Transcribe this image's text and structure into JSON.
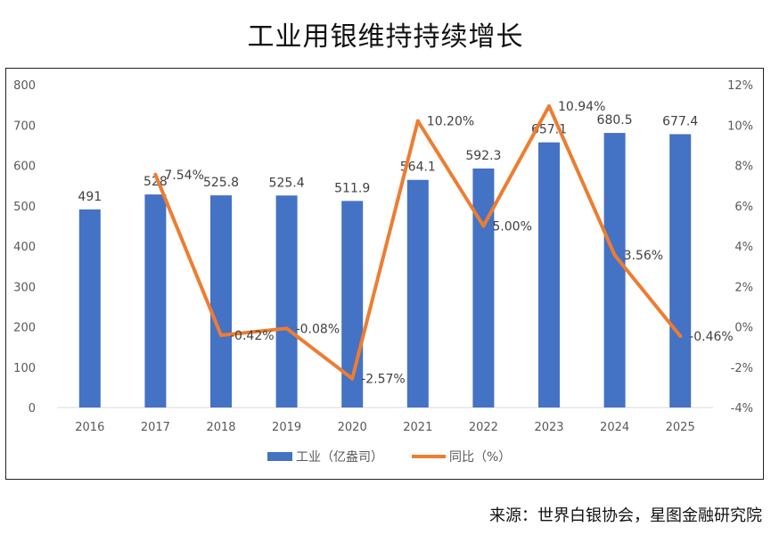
{
  "title": "工业用银维持持续增长",
  "source": "来源：世界白银协会，星图金融研究院",
  "colors": {
    "bar": "#4472C4",
    "line": "#ED7D31",
    "axis_text": "#595959",
    "data_label": "#404040",
    "axis_line": "#D9D9D9"
  },
  "chart_data": {
    "type": "bar+line",
    "categories": [
      "2016",
      "2017",
      "2018",
      "2019",
      "2020",
      "2021",
      "2022",
      "2023",
      "2024",
      "2025"
    ],
    "series": [
      {
        "name": "工业（亿盎司）",
        "type": "bar",
        "axis": "left",
        "values": [
          491,
          528,
          525.8,
          525.4,
          511.9,
          564.1,
          592.3,
          657.1,
          680.5,
          677.4
        ],
        "labels": [
          "491",
          "528",
          "525.8",
          "525.4",
          "511.9",
          "564.1",
          "592.3",
          "657.1",
          "680.5",
          "677.4"
        ]
      },
      {
        "name": "同比（%）",
        "type": "line",
        "axis": "right",
        "values": [
          null,
          7.54,
          -0.42,
          -0.08,
          -2.57,
          10.2,
          5.0,
          10.94,
          3.56,
          -0.46
        ],
        "labels": [
          null,
          "7.54%",
          "-0.42%",
          "-0.08%",
          "-2.57%",
          "10.20%",
          "5.00%",
          "10.94%",
          "3.56%",
          "-0.46%"
        ]
      }
    ],
    "y_left": {
      "min": 0,
      "max": 800,
      "ticks": [
        "0",
        "100",
        "200",
        "300",
        "400",
        "500",
        "600",
        "700",
        "800"
      ]
    },
    "y_right": {
      "min": -4,
      "max": 12,
      "ticks": [
        "-4%",
        "-2%",
        "0%",
        "2%",
        "4%",
        "6%",
        "8%",
        "10%",
        "12%"
      ]
    },
    "legend": "bottom-center"
  }
}
